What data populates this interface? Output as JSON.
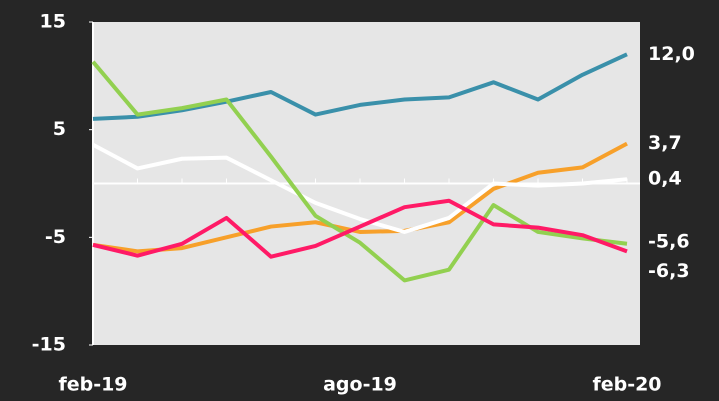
{
  "chart_data": {
    "type": "line",
    "categories": [
      "feb-19",
      null,
      null,
      null,
      null,
      null,
      "ago-19",
      null,
      null,
      null,
      null,
      null,
      "feb-20"
    ],
    "ylim": [
      -15,
      15
    ],
    "yticks": [
      -15,
      -5,
      5,
      15
    ],
    "series": [
      {
        "name": null,
        "color": "#3a90aa",
        "label_color": "#22b0ea",
        "values": [
          6.0,
          6.2,
          6.8,
          7.6,
          8.5,
          6.4,
          7.3,
          7.8,
          8.0,
          9.4,
          7.8,
          10.1,
          12.0
        ],
        "value_labels": [
          null,
          null,
          null,
          null,
          null,
          null,
          null,
          null,
          null,
          null,
          null,
          null,
          "12,0"
        ]
      },
      {
        "name": null,
        "color": "#f7a02a",
        "label_color": "#f7a02a",
        "values": [
          -5.7,
          -6.3,
          -6.0,
          -5.0,
          -4.0,
          -3.6,
          -4.5,
          -4.4,
          -3.6,
          -0.5,
          1.0,
          1.5,
          3.7
        ],
        "value_labels": [
          null,
          null,
          null,
          null,
          null,
          null,
          null,
          null,
          null,
          null,
          null,
          null,
          "3,7"
        ]
      },
      {
        "name": null,
        "color": "#ffffff",
        "label_color": "#ffffff",
        "values": [
          3.6,
          1.4,
          2.3,
          2.4,
          0.3,
          -1.8,
          -3.3,
          -4.5,
          -3.2,
          0.0,
          -0.2,
          0.0,
          0.4
        ],
        "value_labels": [
          null,
          null,
          null,
          null,
          null,
          null,
          null,
          null,
          null,
          null,
          null,
          null,
          "0,4"
        ]
      },
      {
        "name": null,
        "color": "#92d050",
        "label_color": "#92d050",
        "values": [
          11.3,
          6.4,
          7.0,
          7.8,
          2.5,
          -3.0,
          -5.5,
          -9.0,
          -8.0,
          -2.0,
          -4.5,
          -5.1,
          -5.6
        ],
        "value_labels": [
          null,
          null,
          null,
          null,
          null,
          null,
          null,
          null,
          null,
          null,
          null,
          null,
          "-5,6"
        ]
      },
      {
        "name": null,
        "color": "#ff1a66",
        "label_color": "#ff1a66",
        "values": [
          -5.7,
          -6.7,
          -5.6,
          -3.2,
          -6.8,
          -5.8,
          -4.0,
          -2.2,
          -1.6,
          -3.8,
          -4.1,
          -4.8,
          -6.3
        ],
        "value_labels": [
          null,
          null,
          null,
          null,
          null,
          null,
          null,
          null,
          null,
          null,
          null,
          null,
          "-6,3"
        ]
      }
    ]
  }
}
